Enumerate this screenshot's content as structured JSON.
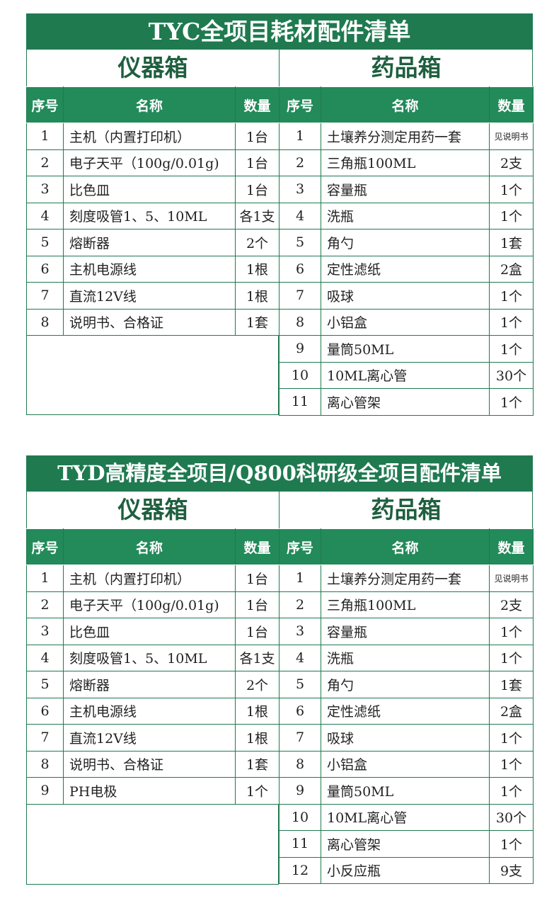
{
  "sections": [
    {
      "title": "TYC全项目耗材配件清单",
      "left": {
        "heading": "仪器箱",
        "columns": [
          "序号",
          "名称",
          "数量"
        ],
        "rows": [
          {
            "no": "1",
            "name": "主机（内置打印机）",
            "qty": "1台"
          },
          {
            "no": "2",
            "name": "电子天平（100g/0.01g)",
            "qty": "1台"
          },
          {
            "no": "3",
            "name": "比色皿",
            "qty": "1台"
          },
          {
            "no": "4",
            "name": "刻度吸管1、5、10ML",
            "qty": "各1支"
          },
          {
            "no": "5",
            "name": "熔断器",
            "qty": "2个"
          },
          {
            "no": "6",
            "name": "主机电源线",
            "qty": "1根"
          },
          {
            "no": "7",
            "name": "直流12V线",
            "qty": "1根"
          },
          {
            "no": "8",
            "name": "说明书、合格证",
            "qty": "1套"
          }
        ]
      },
      "right": {
        "heading": "药品箱",
        "columns": [
          "序号",
          "名称",
          "数量"
        ],
        "rows": [
          {
            "no": "1",
            "name": "土壤养分测定用药一套",
            "qty": "见说明书"
          },
          {
            "no": "2",
            "name": "三角瓶100ML",
            "qty": "2支"
          },
          {
            "no": "3",
            "name": "容量瓶",
            "qty": "1个"
          },
          {
            "no": "4",
            "name": "洗瓶",
            "qty": "1个"
          },
          {
            "no": "5",
            "name": "角勺",
            "qty": "1套"
          },
          {
            "no": "6",
            "name": "定性滤纸",
            "qty": "2盒"
          },
          {
            "no": "7",
            "name": "吸球",
            "qty": "1个"
          },
          {
            "no": "8",
            "name": "小铝盒",
            "qty": "1个"
          },
          {
            "no": "9",
            "name": "量筒50ML",
            "qty": "1个"
          },
          {
            "no": "10",
            "name": "10ML离心管",
            "qty": "30个"
          },
          {
            "no": "11",
            "name": "离心管架",
            "qty": "1个"
          }
        ]
      }
    },
    {
      "title": "TYD高精度全项目/Q800科研级全项目配件清单",
      "left": {
        "heading": "仪器箱",
        "columns": [
          "序号",
          "名称",
          "数量"
        ],
        "rows": [
          {
            "no": "1",
            "name": "主机（内置打印机）",
            "qty": "1台"
          },
          {
            "no": "2",
            "name": "电子天平（100g/0.01g)",
            "qty": "1台"
          },
          {
            "no": "3",
            "name": "比色皿",
            "qty": "1台"
          },
          {
            "no": "4",
            "name": "刻度吸管1、5、10ML",
            "qty": "各1支"
          },
          {
            "no": "5",
            "name": "熔断器",
            "qty": "2个"
          },
          {
            "no": "6",
            "name": "主机电源线",
            "qty": "1根"
          },
          {
            "no": "7",
            "name": "直流12V线",
            "qty": "1根"
          },
          {
            "no": "8",
            "name": "说明书、合格证",
            "qty": "1套"
          },
          {
            "no": "9",
            "name": "PH电极",
            "qty": "1个"
          }
        ]
      },
      "right": {
        "heading": "药品箱",
        "columns": [
          "序号",
          "名称",
          "数量"
        ],
        "rows": [
          {
            "no": "1",
            "name": "土壤养分测定用药一套",
            "qty": "见说明书"
          },
          {
            "no": "2",
            "name": "三角瓶100ML",
            "qty": "2支"
          },
          {
            "no": "3",
            "name": "容量瓶",
            "qty": "1个"
          },
          {
            "no": "4",
            "name": "洗瓶",
            "qty": "1个"
          },
          {
            "no": "5",
            "name": "角勺",
            "qty": "1套"
          },
          {
            "no": "6",
            "name": "定性滤纸",
            "qty": "2盒"
          },
          {
            "no": "7",
            "name": "吸球",
            "qty": "1个"
          },
          {
            "no": "8",
            "name": "小铝盒",
            "qty": "1个"
          },
          {
            "no": "9",
            "name": "量筒50ML",
            "qty": "1个"
          },
          {
            "no": "10",
            "name": "10ML离心管",
            "qty": "30个"
          },
          {
            "no": "11",
            "name": "离心管架",
            "qty": "1个"
          },
          {
            "no": "12",
            "name": "小反应瓶",
            "qty": "9支"
          }
        ]
      }
    }
  ],
  "colors": {
    "header_green": "#1f7a50",
    "column_header_green": "#238a5a"
  }
}
